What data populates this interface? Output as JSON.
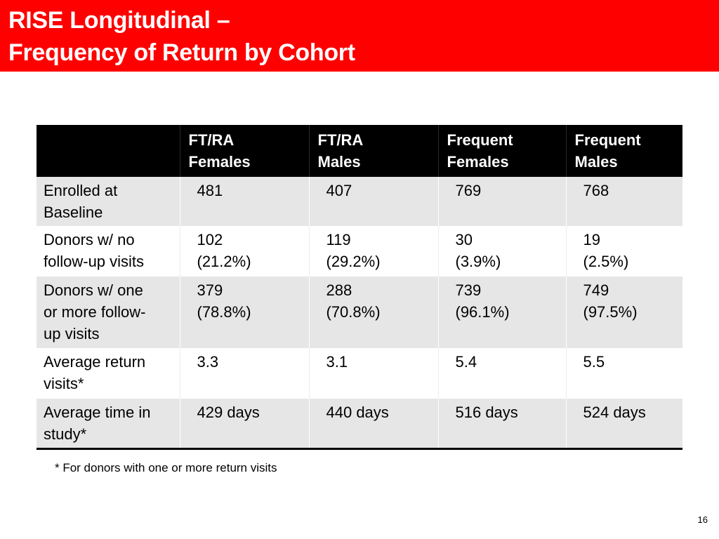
{
  "slide": {
    "title_lines": [
      "RISE Longitudinal –",
      "Frequency of Return by Cohort"
    ],
    "accent_color": "#ff0000",
    "page_number": "16"
  },
  "table": {
    "headers": [
      [],
      [
        "FT/RA",
        "Females"
      ],
      [
        "FT/RA",
        "Males"
      ],
      [
        "Frequent",
        "Females"
      ],
      [
        "Frequent",
        "Males"
      ]
    ],
    "rows": [
      {
        "label": [
          "Enrolled at",
          "Baseline"
        ],
        "cells": [
          [
            "481"
          ],
          [
            "407"
          ],
          [
            "769"
          ],
          [
            "768"
          ]
        ]
      },
      {
        "label": [
          "Donors w/ no",
          "follow-up visits"
        ],
        "cells": [
          [
            "102",
            "(21.2%)"
          ],
          [
            "119",
            "(29.2%)"
          ],
          [
            "30",
            "(3.9%)"
          ],
          [
            "19",
            "(2.5%)"
          ]
        ]
      },
      {
        "label": [
          "Donors w/ one",
          "or more follow-",
          "up visits"
        ],
        "cells": [
          [
            "379",
            "(78.8%)"
          ],
          [
            "288",
            "(70.8%)"
          ],
          [
            "739",
            "(96.1%)"
          ],
          [
            "749",
            "(97.5%)"
          ]
        ]
      },
      {
        "label": [
          "Average return",
          "visits*"
        ],
        "cells": [
          [
            "3.3"
          ],
          [
            "3.1"
          ],
          [
            "5.4"
          ],
          [
            "5.5"
          ]
        ]
      },
      {
        "label": [
          "Average time in",
          "study*"
        ],
        "cells": [
          [
            "429 days"
          ],
          [
            "440 days"
          ],
          [
            "516 days"
          ],
          [
            "524 days"
          ]
        ]
      }
    ]
  },
  "footnote": "* For donors with one or more return visits"
}
